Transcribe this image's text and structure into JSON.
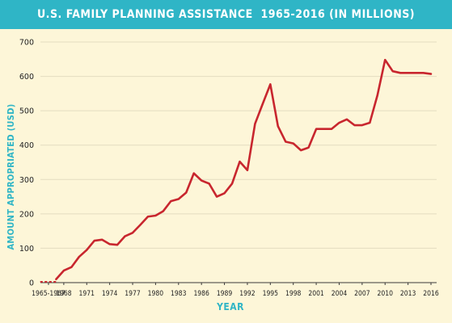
{
  "title": "U.S. FAMILY PLANNING ASSISTANCE  1965-2016 (IN MILLIONS)",
  "colors": {
    "background": "#fdf6d8",
    "title_band": "#2fb5c6",
    "axis_label": "#2fb5c6",
    "line": "#c8262e",
    "grid": "#e3dcc0"
  },
  "chart_data": {
    "type": "line",
    "title": "U.S. FAMILY PLANNING ASSISTANCE  1965-2016 (IN MILLIONS)",
    "xlabel": "YEAR",
    "ylabel": "AMOUNT APPROPRIATED (USD)",
    "ylim": [
      0,
      700
    ],
    "yticks": [
      0,
      100,
      200,
      300,
      400,
      500,
      600,
      700
    ],
    "xlim": [
      1965,
      2016
    ],
    "xticks": [
      "1965-1967",
      "1968",
      "1971",
      "1974",
      "1977",
      "1980",
      "1983",
      "1986",
      "1989",
      "1992",
      "1995",
      "1998",
      "2001",
      "2004",
      "2007",
      "2010",
      "2013",
      "2016"
    ],
    "grid": true,
    "series": [
      {
        "x": [
          1967,
          1968,
          1969,
          1970,
          1971,
          1972,
          1973,
          1974,
          1975,
          1976,
          1977,
          1978,
          1979,
          1980,
          1981,
          1982,
          1983,
          1984,
          1985,
          1986,
          1987,
          1988,
          1989,
          1990,
          1991,
          1992,
          1993,
          1994,
          1995,
          1996,
          1997,
          1998,
          1999,
          2000,
          2001,
          2002,
          2003,
          2004,
          2005,
          2006,
          2007,
          2008,
          2009,
          2010,
          2011,
          2012,
          2013,
          2014,
          2015,
          2016
        ],
        "y": [
          10,
          35,
          45,
          75,
          95,
          122,
          125,
          112,
          110,
          135,
          145,
          168,
          192,
          195,
          208,
          237,
          243,
          262,
          318,
          297,
          288,
          250,
          260,
          288,
          352,
          327,
          462,
          520,
          577,
          455,
          410,
          405,
          385,
          393,
          447,
          447,
          447,
          465,
          475,
          458,
          458,
          465,
          545,
          648,
          615,
          610,
          610,
          610,
          610,
          607
        ],
        "color": "#c8262e"
      }
    ],
    "dotted_segment": {
      "x": [
        1965,
        1967
      ],
      "y": [
        0,
        0
      ]
    }
  }
}
